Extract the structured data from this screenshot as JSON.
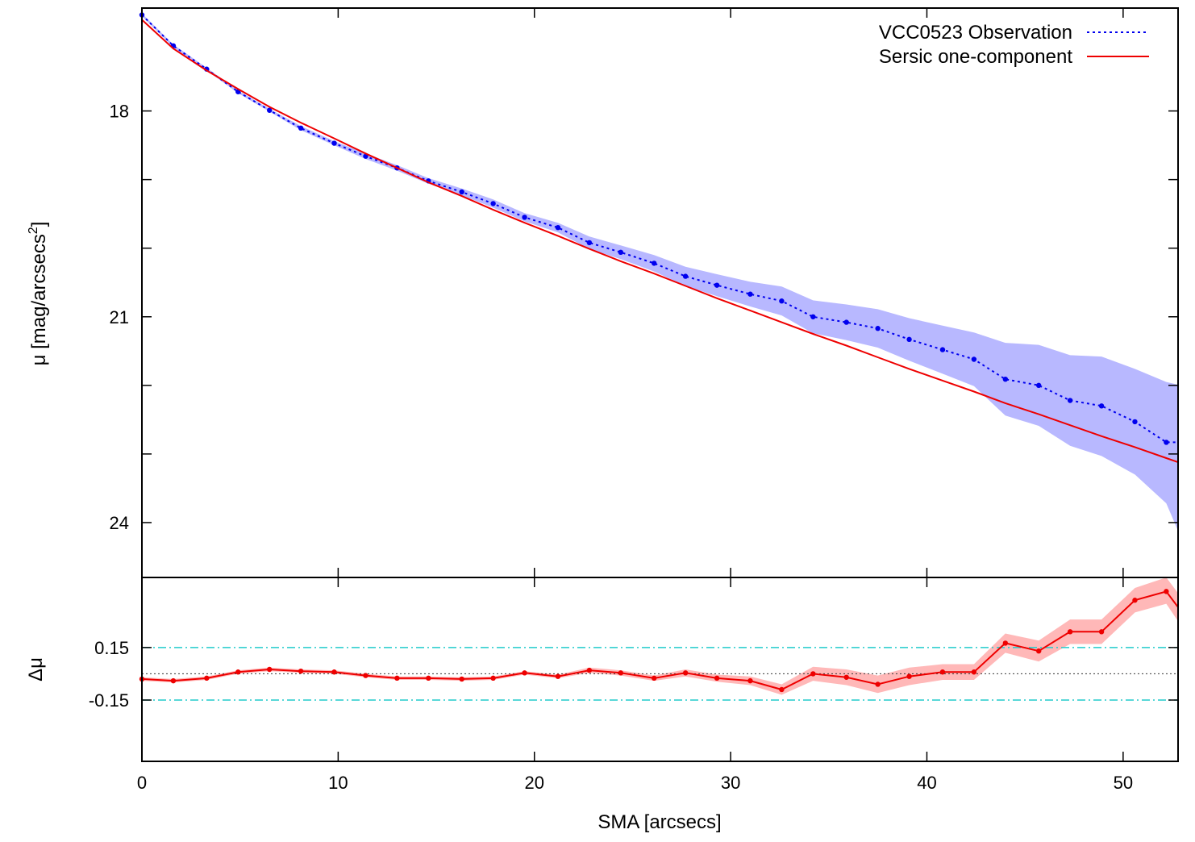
{
  "chart_data": [
    {
      "type": "line",
      "panel": "main",
      "ylabel_main": "μ [mag/arcsecs",
      "ylabel_sup": "2",
      "ylabel_close": "]",
      "xlim": [
        0,
        52.8
      ],
      "ylim": [
        16.5,
        24.8
      ],
      "y_inverted": true,
      "yticks": [
        18,
        21,
        24
      ],
      "yticks_unlabeled": [
        19,
        20,
        22,
        23
      ],
      "legend_position": "top-right",
      "series": [
        {
          "name": "VCC0523 Observation",
          "style": "dotted",
          "color": "#0000ee",
          "x": [
            0,
            1.6,
            3.3,
            4.9,
            6.5,
            8.1,
            9.8,
            11.4,
            13.0,
            14.6,
            16.3,
            17.9,
            19.5,
            21.2,
            22.8,
            24.4,
            26.1,
            27.7,
            29.3,
            31.0,
            32.6,
            34.2,
            35.9,
            37.5,
            39.1,
            40.8,
            42.4,
            44.0,
            45.7,
            47.3,
            48.9,
            50.6,
            52.2,
            52.8
          ],
          "y": [
            16.6,
            17.05,
            17.39,
            17.72,
            17.99,
            18.25,
            18.47,
            18.66,
            18.83,
            19.02,
            19.18,
            19.35,
            19.55,
            19.7,
            19.92,
            20.06,
            20.22,
            20.41,
            20.54,
            20.67,
            20.77,
            21.0,
            21.08,
            21.17,
            21.33,
            21.48,
            21.62,
            21.91,
            22.0,
            22.22,
            22.3,
            22.53,
            22.83,
            22.83
          ],
          "band_lower": [
            16.58,
            17.03,
            17.37,
            17.7,
            17.97,
            18.22,
            18.44,
            18.62,
            18.79,
            18.98,
            19.13,
            19.29,
            19.49,
            19.63,
            19.83,
            19.96,
            20.1,
            20.27,
            20.38,
            20.49,
            20.56,
            20.76,
            20.82,
            20.89,
            21.02,
            21.13,
            21.23,
            21.38,
            21.41,
            21.56,
            21.58,
            21.76,
            21.95,
            21.99
          ],
          "band_upper": [
            16.62,
            17.07,
            17.41,
            17.74,
            18.01,
            18.28,
            18.5,
            18.7,
            18.87,
            19.06,
            19.23,
            19.41,
            19.61,
            19.77,
            20.01,
            20.16,
            20.34,
            20.55,
            20.7,
            20.85,
            20.98,
            21.24,
            21.34,
            21.45,
            21.64,
            21.83,
            22.01,
            22.44,
            22.59,
            22.88,
            23.03,
            23.3,
            23.72,
            24.12
          ]
        },
        {
          "name": "Sersic one-component",
          "style": "solid",
          "color": "#ee0000",
          "x": [
            0,
            1.6,
            3.3,
            4.9,
            6.5,
            8.1,
            9.8,
            11.4,
            13.0,
            14.6,
            16.3,
            17.9,
            19.5,
            21.2,
            22.8,
            24.4,
            26.1,
            27.7,
            29.3,
            31.0,
            32.6,
            34.2,
            35.9,
            37.5,
            39.1,
            40.8,
            42.4,
            44.0,
            45.7,
            47.3,
            48.9,
            50.6,
            52.2,
            52.8
          ],
          "y": [
            16.67,
            17.09,
            17.41,
            17.68,
            17.94,
            18.17,
            18.4,
            18.62,
            18.83,
            19.04,
            19.24,
            19.44,
            19.63,
            19.82,
            20.01,
            20.19,
            20.37,
            20.55,
            20.73,
            20.91,
            21.08,
            21.25,
            21.42,
            21.59,
            21.76,
            21.93,
            22.09,
            22.26,
            22.42,
            22.58,
            22.74,
            22.9,
            23.06,
            23.12
          ]
        }
      ]
    },
    {
      "type": "line",
      "panel": "residual",
      "xlabel": "SMA [arcsecs]",
      "ylabel": "Δμ",
      "xlim": [
        0,
        52.8
      ],
      "ylim": [
        -0.5,
        0.55
      ],
      "xticks": [
        0,
        10,
        20,
        30,
        40,
        50
      ],
      "yticks": [
        0.15,
        -0.15
      ],
      "reference_lines": [
        0.15,
        -0.15
      ],
      "series": [
        {
          "name": "",
          "color": "#ee0000",
          "x": [
            0,
            1.6,
            3.3,
            4.9,
            6.5,
            8.1,
            9.8,
            11.4,
            13.0,
            14.6,
            16.3,
            17.9,
            19.5,
            21.2,
            22.8,
            24.4,
            26.1,
            27.7,
            29.3,
            31.0,
            32.6,
            34.2,
            35.9,
            37.5,
            39.1,
            40.8,
            42.4,
            44.0,
            45.7,
            47.3,
            48.9,
            50.6,
            52.2,
            52.8
          ],
          "y": [
            -0.03,
            -0.04,
            -0.025,
            0.01,
            0.025,
            0.015,
            0.01,
            -0.01,
            -0.025,
            -0.025,
            -0.03,
            -0.025,
            0.005,
            -0.015,
            0.02,
            0.005,
            -0.025,
            0.005,
            -0.025,
            -0.04,
            -0.09,
            0.0,
            -0.02,
            -0.06,
            -0.015,
            0.01,
            0.01,
            0.175,
            0.13,
            0.24,
            0.24,
            0.42,
            0.47,
            0.38
          ],
          "band_lower": [
            -0.04,
            -0.05,
            -0.035,
            0.0,
            0.015,
            0.005,
            0.0,
            -0.02,
            -0.035,
            -0.035,
            -0.04,
            -0.035,
            -0.005,
            -0.025,
            0.005,
            -0.01,
            -0.04,
            -0.015,
            -0.045,
            -0.065,
            -0.12,
            -0.04,
            -0.065,
            -0.11,
            -0.065,
            -0.035,
            -0.035,
            0.12,
            0.07,
            0.17,
            0.17,
            0.35,
            0.4,
            0.3
          ],
          "band_upper": [
            -0.02,
            -0.03,
            -0.015,
            0.02,
            0.035,
            0.025,
            0.02,
            0.0,
            -0.015,
            -0.015,
            -0.02,
            -0.015,
            0.015,
            -0.005,
            0.035,
            0.02,
            -0.01,
            0.025,
            -0.005,
            -0.015,
            -0.06,
            0.04,
            0.025,
            -0.01,
            0.035,
            0.055,
            0.055,
            0.23,
            0.19,
            0.31,
            0.31,
            0.49,
            0.55,
            0.46
          ]
        }
      ]
    }
  ]
}
